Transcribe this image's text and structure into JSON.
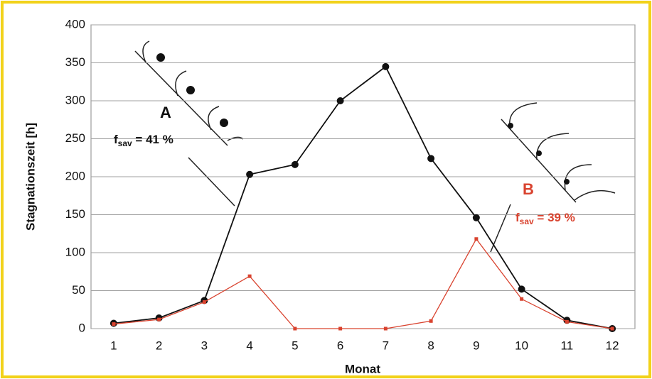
{
  "chart_data": {
    "type": "line",
    "y_label": "Stagnationszeit [h]",
    "x_label": "Monat",
    "categories": [
      "1",
      "2",
      "3",
      "4",
      "5",
      "6",
      "7",
      "8",
      "9",
      "10",
      "11",
      "12"
    ],
    "series": [
      {
        "color": "#111111",
        "marker": "circle",
        "values": [
          7,
          14,
          37,
          203,
          216,
          300,
          345,
          224,
          146,
          52,
          11,
          0
        ]
      },
      {
        "color": "#d9432f",
        "marker": "square",
        "values": [
          6,
          12,
          35,
          69,
          0,
          0,
          0,
          10,
          118,
          39,
          9,
          0
        ]
      }
    ],
    "ylim": [
      0,
      400
    ],
    "yticks": [
      0,
      50,
      100,
      150,
      200,
      250,
      300,
      350,
      400
    ],
    "grid": true,
    "annotations": [
      {
        "label": "A",
        "f": "f",
        "sub": "sav",
        "text": " = 41 %",
        "color": "#111111"
      },
      {
        "label": "B",
        "f": "f",
        "sub": "sav",
        "text": " = 39 %",
        "color": "#d9432f"
      }
    ]
  }
}
